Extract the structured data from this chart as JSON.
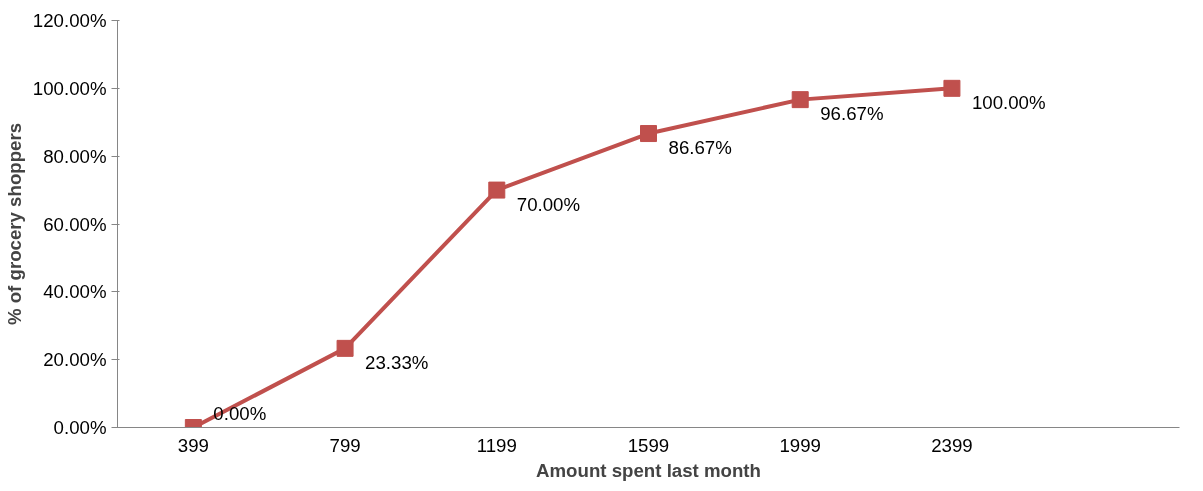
{
  "chart_data": {
    "type": "line",
    "xlabel": "Amount spent last month",
    "ylabel": "% of grocery shoppers",
    "categories": [
      "399",
      "799",
      "1199",
      "1599",
      "1999",
      "2399",
      null
    ],
    "series": [
      {
        "color": "#c0504d",
        "values": [
          0,
          23.33,
          70,
          86.67,
          96.67,
          100,
          null
        ],
        "value_labels": [
          "0.00%",
          "23.33%",
          "70.00%",
          "86.67%",
          "96.67%",
          "100.00%",
          null
        ]
      }
    ],
    "ylim": [
      0,
      120
    ],
    "yticks": [
      {
        "value": 0,
        "label": "0.00%"
      },
      {
        "value": 20,
        "label": "20.00%"
      },
      {
        "value": 40,
        "label": "40.00%"
      },
      {
        "value": 60,
        "label": "60.00%"
      },
      {
        "value": 80,
        "label": "80.00%"
      },
      {
        "value": 100,
        "label": "100.00%"
      },
      {
        "value": 120,
        "label": "120.00%"
      }
    ],
    "marker": "square",
    "line_style": "solid",
    "grid": false
  }
}
